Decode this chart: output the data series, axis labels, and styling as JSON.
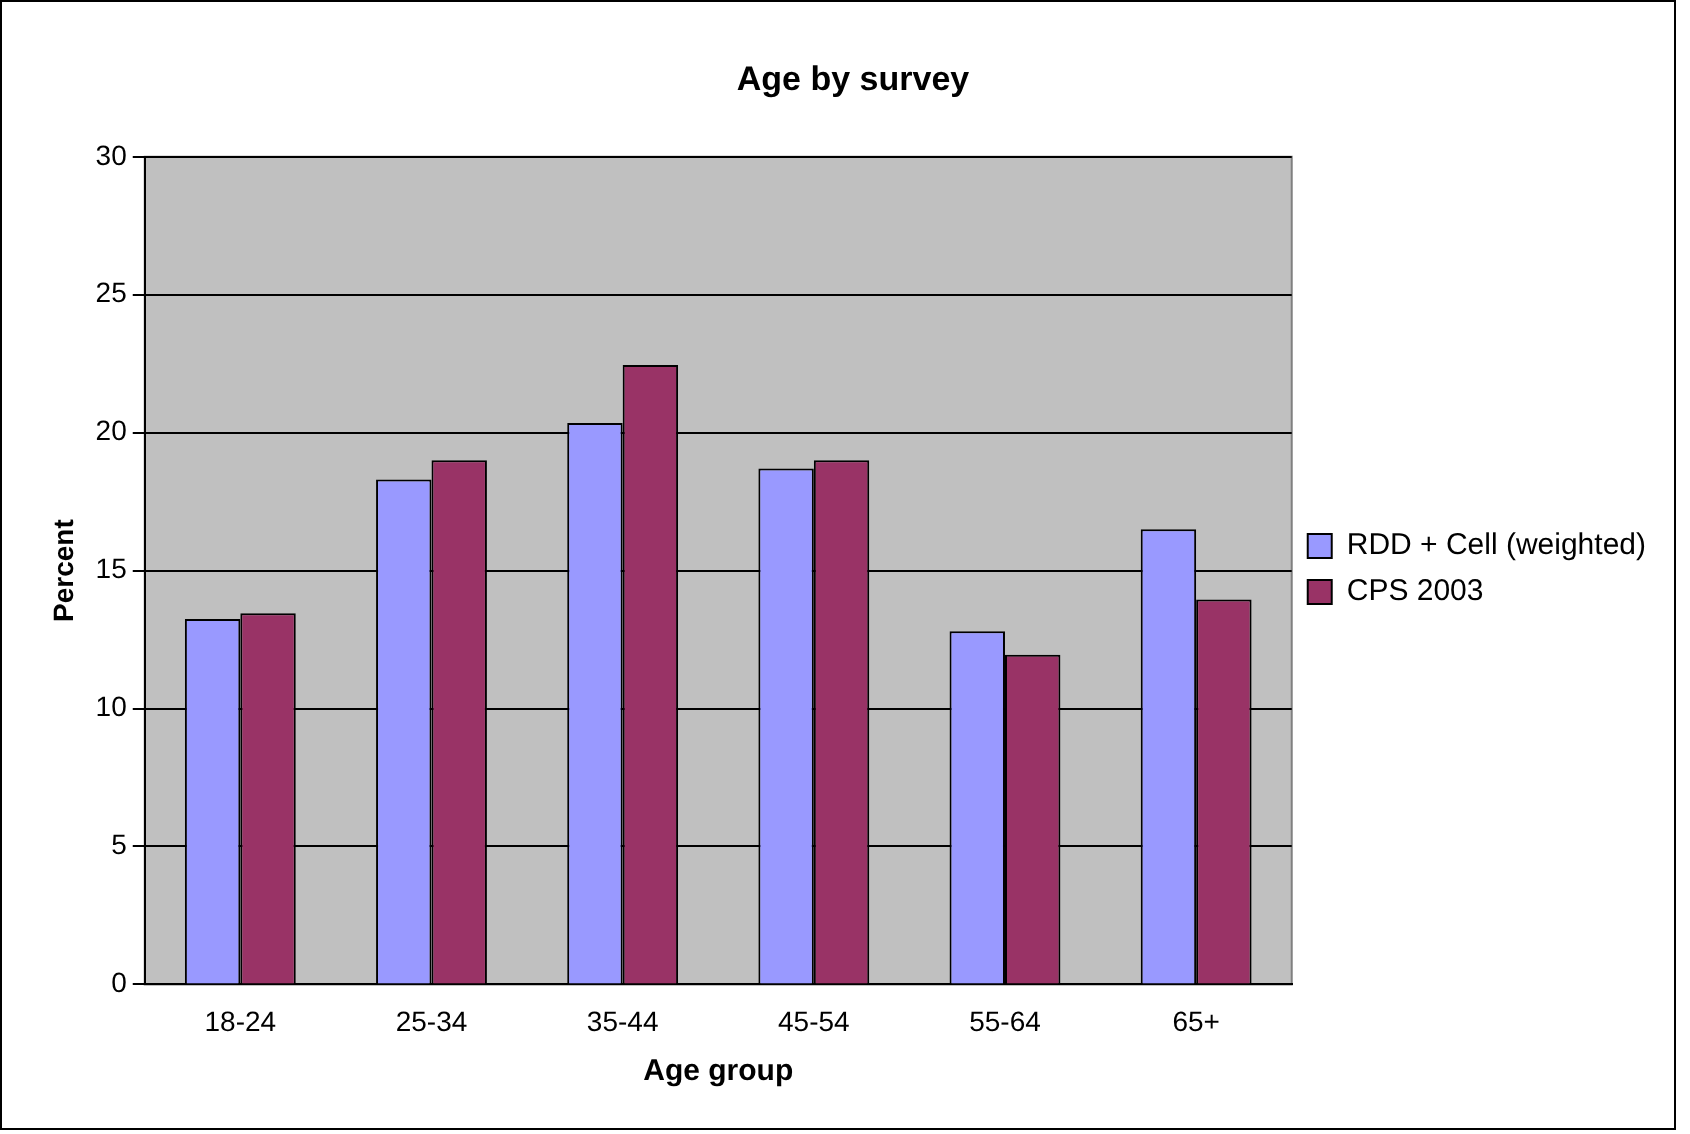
{
  "chart_data": {
    "type": "bar",
    "title": "Age by survey",
    "xlabel": "Age group",
    "ylabel": "Percent",
    "categories": [
      "18-24",
      "25-34",
      "35-44",
      "45-54",
      "55-64",
      "65+"
    ],
    "series": [
      {
        "name": "RDD + Cell (weighted)",
        "color": "#9999ff",
        "values": [
          13.25,
          18.3,
          20.35,
          18.7,
          12.8,
          16.5
        ]
      },
      {
        "name": "CPS 2003",
        "color": "#993366",
        "values": [
          13.45,
          19.0,
          22.45,
          19.0,
          11.95,
          13.95
        ]
      }
    ],
    "ylim": [
      0,
      30
    ],
    "yticks": [
      0,
      5,
      10,
      15,
      20,
      25,
      30
    ],
    "grid": "y",
    "legend": "right"
  }
}
